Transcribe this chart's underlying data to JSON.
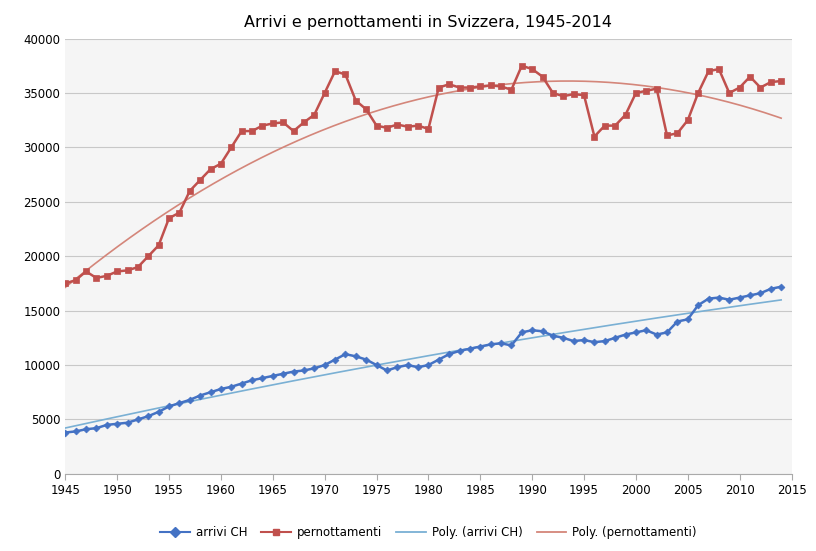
{
  "title": "Arrivi e pernottamenti in Svizzera, 1945-2014",
  "years": [
    1945,
    1946,
    1947,
    1948,
    1949,
    1950,
    1951,
    1952,
    1953,
    1954,
    1955,
    1956,
    1957,
    1958,
    1959,
    1960,
    1961,
    1962,
    1963,
    1964,
    1965,
    1966,
    1967,
    1968,
    1969,
    1970,
    1971,
    1972,
    1973,
    1974,
    1975,
    1976,
    1977,
    1978,
    1979,
    1980,
    1981,
    1982,
    1983,
    1984,
    1985,
    1986,
    1987,
    1988,
    1989,
    1990,
    1991,
    1992,
    1993,
    1994,
    1995,
    1996,
    1997,
    1998,
    1999,
    2000,
    2001,
    2002,
    2003,
    2004,
    2005,
    2006,
    2007,
    2008,
    2009,
    2010,
    2011,
    2012,
    2013,
    2014
  ],
  "arrivi": [
    3800,
    3900,
    4100,
    4200,
    4500,
    4600,
    4700,
    5000,
    5300,
    5700,
    6200,
    6500,
    6800,
    7200,
    7500,
    7800,
    8000,
    8300,
    8600,
    8800,
    9000,
    9200,
    9400,
    9500,
    9700,
    10000,
    10500,
    11000,
    10800,
    10500,
    10000,
    9500,
    9800,
    10000,
    9800,
    10000,
    10500,
    11000,
    11300,
    11500,
    11700,
    11900,
    12000,
    11800,
    13000,
    13200,
    13100,
    12700,
    12500,
    12200,
    12300,
    12100,
    12200,
    12500,
    12800,
    13000,
    13200,
    12800,
    13000,
    14000,
    14200,
    15500,
    16100,
    16200,
    16000,
    16200,
    16400,
    16600,
    17000,
    17200
  ],
  "pernottamenti": [
    17500,
    17800,
    18600,
    18000,
    18200,
    18600,
    18700,
    19000,
    20000,
    21000,
    23500,
    24000,
    26000,
    27000,
    28000,
    28500,
    30000,
    31500,
    31500,
    32000,
    32200,
    32300,
    31500,
    32300,
    33000,
    35000,
    37000,
    36700,
    34300,
    33500,
    32000,
    31800,
    32100,
    31900,
    32000,
    31700,
    35500,
    35800,
    35500,
    35500,
    35600,
    35700,
    35600,
    35300,
    37500,
    37200,
    36500,
    35000,
    34700,
    34900,
    34800,
    31000,
    32000,
    32000,
    33000,
    35000,
    35200,
    35400,
    31100,
    31300,
    32500,
    35000,
    37000,
    37200,
    35000,
    35500,
    36500,
    35500,
    36000,
    36100
  ],
  "arrivi_color": "#4472c4",
  "pernottamenti_color": "#c0504d",
  "poly_arrivi_color": "#7ab0d4",
  "poly_pernottamenti_color": "#d4867a",
  "bg_color": "#ffffff",
  "plot_bg_color": "#f5f5f5",
  "grid_color": "#c8c8c8",
  "ylim": [
    0,
    40000
  ],
  "xlim": [
    1945,
    2015
  ],
  "yticks": [
    0,
    5000,
    10000,
    15000,
    20000,
    25000,
    30000,
    35000,
    40000
  ],
  "xticks": [
    1945,
    1950,
    1955,
    1960,
    1965,
    1970,
    1975,
    1980,
    1985,
    1990,
    1995,
    2000,
    2005,
    2010,
    2015
  ]
}
